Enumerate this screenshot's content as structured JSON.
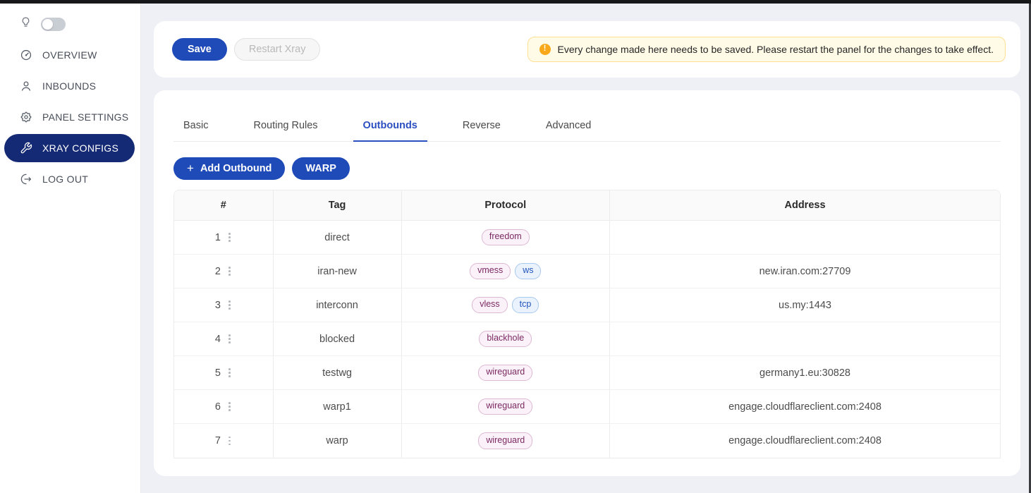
{
  "sidebar": {
    "theme_toggle": {
      "state": "off"
    },
    "items": [
      {
        "label": "OVERVIEW",
        "icon": "dashboard-icon",
        "active": false
      },
      {
        "label": "INBOUNDS",
        "icon": "user-icon",
        "active": false
      },
      {
        "label": "PANEL SETTINGS",
        "icon": "gear-icon",
        "active": false
      },
      {
        "label": "XRAY CONFIGS",
        "icon": "wrench-icon",
        "active": true
      },
      {
        "label": "LOG OUT",
        "icon": "logout-icon",
        "active": false
      }
    ]
  },
  "toolbar": {
    "save_label": "Save",
    "restart_label": "Restart Xray",
    "alert_text": "Every change made here needs to be saved. Please restart the panel for the changes to take effect.",
    "alert_icon_glyph": "!"
  },
  "tabs": [
    {
      "label": "Basic",
      "active": false
    },
    {
      "label": "Routing Rules",
      "active": false
    },
    {
      "label": "Outbounds",
      "active": true
    },
    {
      "label": "Reverse",
      "active": false
    },
    {
      "label": "Advanced",
      "active": false
    }
  ],
  "actions": {
    "add_outbound_label": "Add Outbound",
    "add_outbound_plus": "+",
    "warp_label": "WARP"
  },
  "outbounds_table": {
    "columns": [
      "#",
      "Tag",
      "Protocol",
      "Address"
    ],
    "rows": [
      {
        "num": "1",
        "tag": "direct",
        "badges": [
          {
            "label": "freedom",
            "color": "pink"
          }
        ],
        "address": ""
      },
      {
        "num": "2",
        "tag": "iran-new",
        "badges": [
          {
            "label": "vmess",
            "color": "pink"
          },
          {
            "label": "ws",
            "color": "blue"
          }
        ],
        "address": "new.iran.com:27709"
      },
      {
        "num": "3",
        "tag": "interconn",
        "badges": [
          {
            "label": "vless",
            "color": "pink"
          },
          {
            "label": "tcp",
            "color": "blue"
          }
        ],
        "address": "us.my:1443"
      },
      {
        "num": "4",
        "tag": "blocked",
        "badges": [
          {
            "label": "blackhole",
            "color": "pink"
          }
        ],
        "address": ""
      },
      {
        "num": "5",
        "tag": "testwg",
        "badges": [
          {
            "label": "wireguard",
            "color": "pink"
          }
        ],
        "address": "germany1.eu:30828"
      },
      {
        "num": "6",
        "tag": "warp1",
        "badges": [
          {
            "label": "wireguard",
            "color": "pink"
          }
        ],
        "address": "engage.cloudflareclient.com:2408"
      },
      {
        "num": "7",
        "tag": "warp",
        "badges": [
          {
            "label": "wireguard",
            "color": "pink"
          }
        ],
        "address": "engage.cloudflareclient.com:2408"
      }
    ]
  },
  "colors": {
    "primary_button": "#1e4bb8",
    "sidebar_active": "#152a74",
    "tab_active": "#2b4fc0",
    "alert_bg": "#fffbe6",
    "alert_border": "#ffdf94",
    "alert_icon": "#f9a81b",
    "badge_pink_text": "#7c2a64",
    "badge_blue_text": "#2355bd",
    "page_bg": "#eef0f5"
  }
}
